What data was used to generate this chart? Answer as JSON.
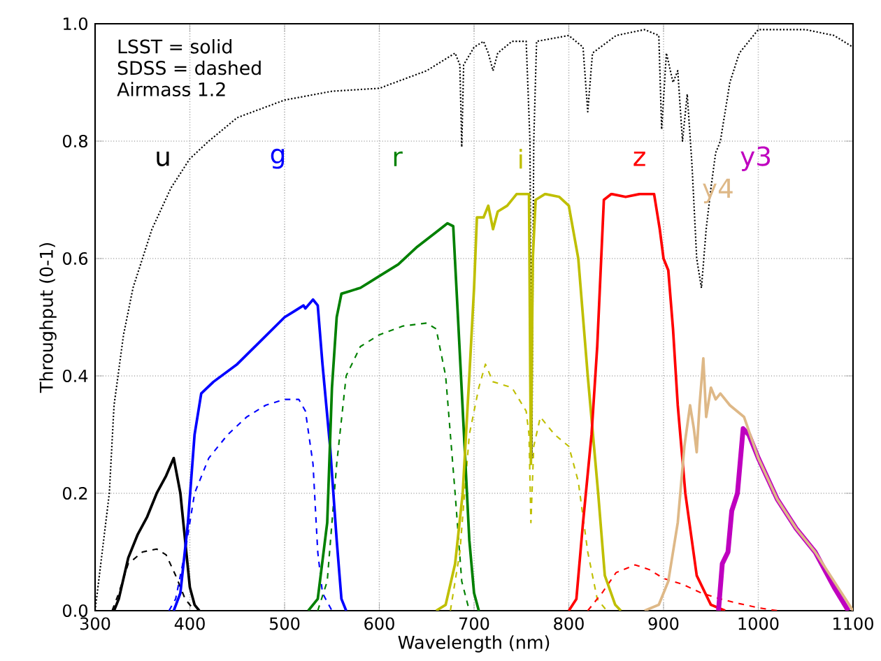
{
  "chart_data": {
    "type": "line",
    "xlabel": "Wavelength (nm)",
    "ylabel": "Throughput (0-1)",
    "annotations": [
      "LSST = solid",
      "SDSS = dashed",
      "Airmass 1.2"
    ],
    "xlim": [
      300,
      1100
    ],
    "ylim": [
      0,
      1
    ],
    "xticks": [
      300,
      400,
      500,
      600,
      700,
      800,
      900,
      1000,
      1100
    ],
    "yticks": [
      {
        "value": 0,
        "label": "0.0"
      },
      {
        "value": 0.2,
        "label": "0.2"
      },
      {
        "value": 0.4,
        "label": "0.4"
      },
      {
        "value": 0.6,
        "label": "0.6"
      },
      {
        "value": 0.8,
        "label": "0.8"
      },
      {
        "value": 1,
        "label": "1.0"
      }
    ],
    "grid": true,
    "series": [
      {
        "color": "#000000",
        "line_style": "dotted",
        "x": [
          300,
          315,
          320,
          330,
          340,
          360,
          380,
          400,
          420,
          450,
          500,
          550,
          600,
          650,
          680,
          685,
          687,
          689,
          700,
          710,
          715,
          720,
          725,
          740,
          755,
          759,
          761,
          763,
          766,
          800,
          815,
          820,
          825,
          850,
          880,
          895,
          898,
          903,
          910,
          915,
          920,
          925,
          930,
          935,
          940,
          945,
          950,
          955,
          960,
          965,
          970,
          980,
          1000,
          1050,
          1080,
          1100
        ],
        "values": [
          0,
          0.2,
          0.35,
          0.47,
          0.55,
          0.65,
          0.72,
          0.77,
          0.8,
          0.84,
          0.87,
          0.885,
          0.89,
          0.92,
          0.95,
          0.93,
          0.79,
          0.93,
          0.96,
          0.97,
          0.95,
          0.92,
          0.95,
          0.97,
          0.97,
          0.8,
          0.26,
          0.8,
          0.97,
          0.98,
          0.96,
          0.85,
          0.95,
          0.98,
          0.99,
          0.98,
          0.82,
          0.95,
          0.9,
          0.92,
          0.8,
          0.88,
          0.76,
          0.6,
          0.55,
          0.65,
          0.72,
          0.78,
          0.8,
          0.85,
          0.9,
          0.95,
          0.99,
          0.99,
          0.98,
          0.96
        ]
      },
      {
        "color": "#000000",
        "line_style": "dashed",
        "x": [
          318,
          325,
          335,
          350,
          365,
          375,
          385,
          395,
          405
        ],
        "values": [
          0,
          0.03,
          0.08,
          0.1,
          0.105,
          0.095,
          0.06,
          0.02,
          0
        ]
      },
      {
        "color": "#0000ff",
        "line_style": "dashed",
        "x": [
          378,
          385,
          395,
          405,
          420,
          440,
          460,
          480,
          500,
          515,
          522,
          530,
          535,
          540,
          550
        ],
        "values": [
          0,
          0.02,
          0.1,
          0.2,
          0.26,
          0.3,
          0.33,
          0.35,
          0.36,
          0.36,
          0.34,
          0.25,
          0.1,
          0.03,
          0
        ]
      },
      {
        "color": "#008000",
        "line_style": "dashed",
        "x": [
          535,
          545,
          555,
          565,
          580,
          600,
          625,
          650,
          660,
          670,
          680,
          687,
          695
        ],
        "values": [
          0,
          0.05,
          0.25,
          0.4,
          0.45,
          0.47,
          0.485,
          0.49,
          0.48,
          0.4,
          0.2,
          0.05,
          0
        ]
      },
      {
        "color": "#bfbf00",
        "line_style": "dashed",
        "x": [
          675,
          685,
          695,
          705,
          712,
          720,
          740,
          755,
          758,
          760,
          763,
          770,
          785,
          800,
          810,
          820,
          830,
          840
        ],
        "values": [
          0,
          0.1,
          0.3,
          0.38,
          0.42,
          0.39,
          0.38,
          0.34,
          0.3,
          0.15,
          0.28,
          0.33,
          0.3,
          0.28,
          0.22,
          0.1,
          0.02,
          0
        ]
      },
      {
        "color": "#ff0000",
        "line_style": "dashed",
        "x": [
          820,
          835,
          850,
          870,
          885,
          900,
          920,
          940,
          960,
          980,
          1000,
          1020
        ],
        "values": [
          0,
          0.03,
          0.065,
          0.078,
          0.07,
          0.055,
          0.045,
          0.03,
          0.02,
          0.012,
          0.005,
          0
        ]
      },
      {
        "name": "u",
        "color": "#000000",
        "line_style": "solid",
        "x": [
          320,
          325,
          335,
          345,
          355,
          365,
          375,
          383,
          390,
          395,
          400,
          405,
          410
        ],
        "values": [
          0,
          0.02,
          0.09,
          0.13,
          0.16,
          0.2,
          0.23,
          0.26,
          0.2,
          0.12,
          0.04,
          0.01,
          0
        ]
      },
      {
        "name": "g",
        "color": "#0000ff",
        "line_style": "solid",
        "x": [
          383,
          390,
          398,
          405,
          412,
          425,
          450,
          475,
          500,
          510,
          520,
          522,
          530,
          535,
          540,
          548,
          555,
          560,
          565
        ],
        "values": [
          0,
          0.03,
          0.15,
          0.3,
          0.37,
          0.39,
          0.42,
          0.46,
          0.5,
          0.51,
          0.52,
          0.515,
          0.53,
          0.52,
          0.42,
          0.28,
          0.12,
          0.02,
          0
        ]
      },
      {
        "name": "r",
        "color": "#008000",
        "line_style": "solid",
        "x": [
          525,
          535,
          545,
          550,
          555,
          560,
          570,
          580,
          590,
          600,
          620,
          640,
          660,
          672,
          678,
          683,
          690,
          695,
          700,
          705
        ],
        "values": [
          0,
          0.02,
          0.15,
          0.38,
          0.5,
          0.54,
          0.545,
          0.55,
          0.56,
          0.57,
          0.59,
          0.62,
          0.645,
          0.66,
          0.655,
          0.5,
          0.28,
          0.12,
          0.03,
          0
        ]
      },
      {
        "name": "i",
        "color": "#bfbf00",
        "line_style": "solid",
        "x": [
          660,
          670,
          680,
          688,
          695,
          700,
          703,
          710,
          715,
          720,
          725,
          735,
          745,
          758,
          760,
          762,
          765,
          775,
          790,
          800,
          810,
          820,
          831,
          838,
          849,
          855
        ],
        "values": [
          0,
          0.01,
          0.08,
          0.2,
          0.4,
          0.55,
          0.67,
          0.67,
          0.69,
          0.65,
          0.68,
          0.69,
          0.71,
          0.71,
          0.25,
          0.6,
          0.7,
          0.71,
          0.705,
          0.69,
          0.6,
          0.4,
          0.2,
          0.06,
          0.01,
          0
        ]
      },
      {
        "name": "z",
        "color": "#ff0000",
        "line_style": "solid",
        "x": [
          800,
          808,
          815,
          824,
          830,
          837,
          845,
          860,
          875,
          890,
          896,
          900,
          905,
          910,
          915,
          923,
          935,
          950,
          965
        ],
        "values": [
          0,
          0.02,
          0.15,
          0.3,
          0.45,
          0.7,
          0.71,
          0.705,
          0.71,
          0.71,
          0.65,
          0.6,
          0.58,
          0.48,
          0.35,
          0.2,
          0.06,
          0.01,
          0
        ]
      },
      {
        "name": "y3",
        "color": "#bf00bf",
        "line_style": "solid",
        "x": [
          958,
          962,
          968,
          972,
          978,
          984,
          990,
          1000,
          1020,
          1040,
          1060,
          1080,
          1095
        ],
        "values": [
          0,
          0.08,
          0.1,
          0.17,
          0.2,
          0.31,
          0.3,
          0.26,
          0.19,
          0.14,
          0.1,
          0.04,
          0
        ]
      },
      {
        "name": "y4",
        "color": "#deb887",
        "line_style": "solid",
        "x": [
          880,
          895,
          905,
          915,
          922,
          928,
          932,
          935,
          938,
          942,
          945,
          950,
          955,
          960,
          970,
          985,
          1000,
          1020,
          1040,
          1060,
          1080,
          1100
        ],
        "values": [
          0,
          0.01,
          0.05,
          0.15,
          0.28,
          0.35,
          0.31,
          0.27,
          0.35,
          0.43,
          0.33,
          0.38,
          0.36,
          0.37,
          0.35,
          0.33,
          0.26,
          0.19,
          0.14,
          0.1,
          0.05,
          0
        ]
      }
    ]
  }
}
